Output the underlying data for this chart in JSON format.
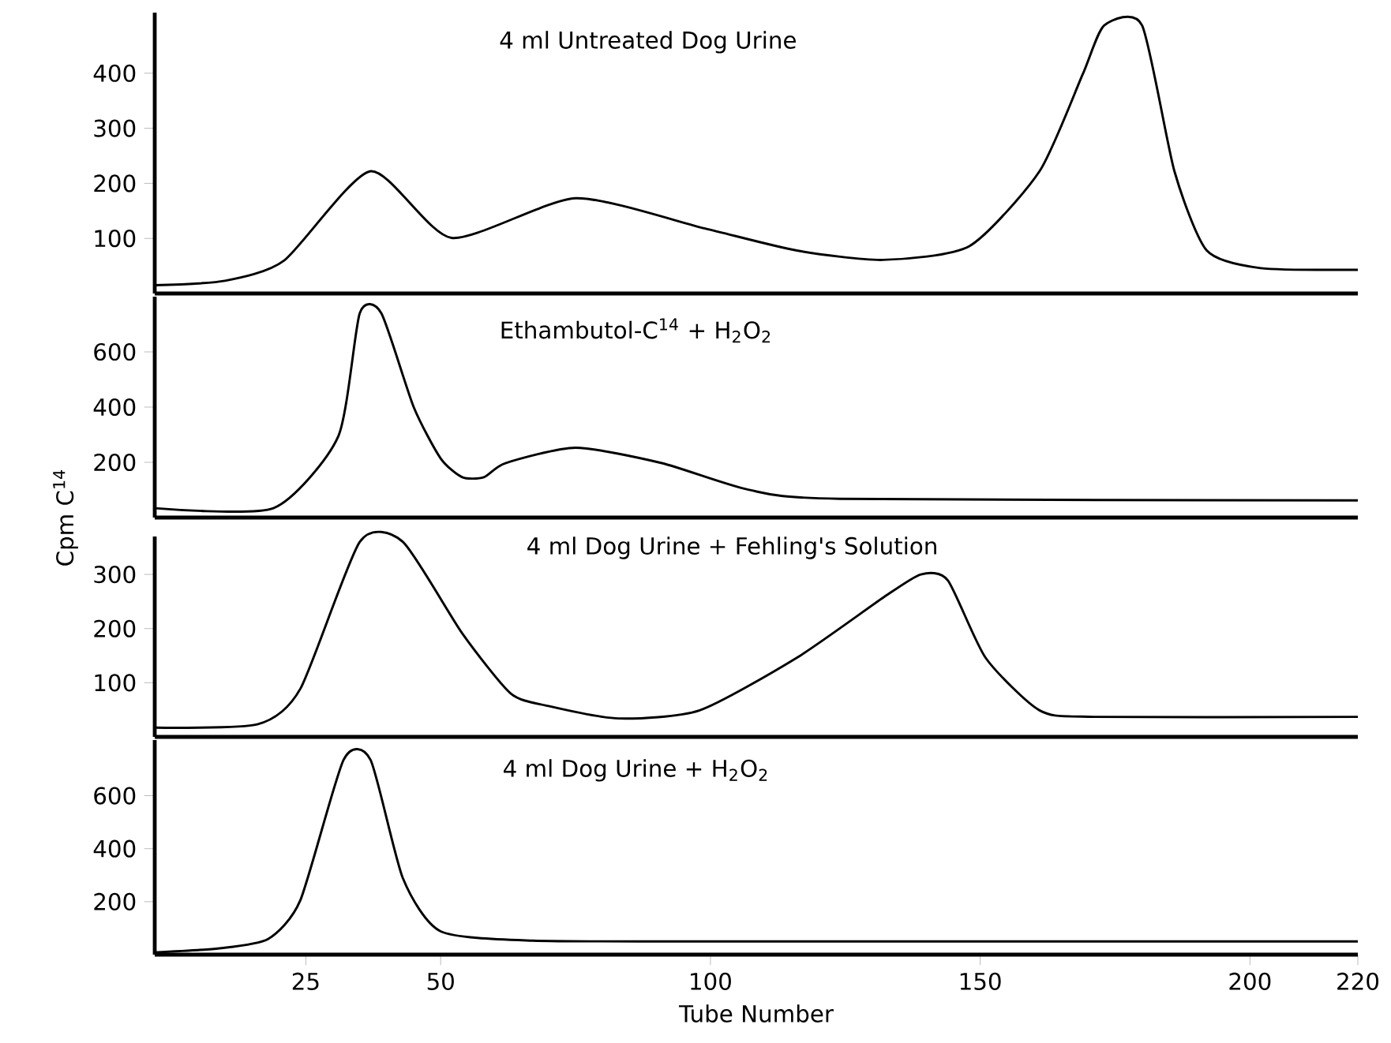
{
  "chart_data": [
    {
      "type": "line",
      "title": "4 ml Untreated Dog Urine",
      "x": [
        -3,
        10,
        21,
        37,
        52,
        75,
        99,
        116,
        132,
        148,
        161,
        169,
        173,
        180,
        186,
        192,
        202,
        220
      ],
      "values": [
        15,
        23,
        60,
        222,
        101,
        173,
        118,
        78,
        61,
        86,
        222,
        398,
        487,
        487,
        222,
        78,
        46,
        43
      ],
      "xlim": [
        -3,
        220
      ],
      "ylim": [
        0,
        510
      ],
      "yticks": [
        100,
        200,
        300,
        400
      ],
      "tick_labels": "y"
    },
    {
      "type": "line",
      "title": "Ethambutol-C$^{14}$ + H$_{2}$O$_{2}$",
      "ylabel": "Cpm C$^{14}$",
      "x": [
        -3,
        19,
        31,
        35,
        39,
        45,
        50,
        54,
        58,
        62,
        75,
        91,
        107,
        124,
        220
      ],
      "values": [
        34,
        34,
        293,
        740,
        740,
        400,
        214,
        146,
        146,
        197,
        253,
        197,
        101,
        68,
        62
      ],
      "xlim": [
        -3,
        220
      ],
      "ylim": [
        0,
        800
      ],
      "yticks": [
        200,
        400,
        600
      ],
      "tick_labels": "y"
    },
    {
      "type": "line",
      "title": "4 ml Dog Urine + Fehling's Solution",
      "x": [
        -3,
        16,
        24,
        35,
        43,
        54,
        63,
        70,
        83,
        98,
        116,
        132,
        139,
        144,
        151,
        161,
        171,
        220
      ],
      "values": [
        17,
        23,
        89,
        360,
        360,
        191,
        80,
        57,
        34,
        49,
        146,
        257,
        300,
        289,
        146,
        49,
        37,
        37
      ],
      "xlim": [
        -3,
        220
      ],
      "ylim": [
        0,
        370
      ],
      "yticks": [
        100,
        200,
        300
      ],
      "tick_labels": "y"
    },
    {
      "type": "line",
      "title": "4 ml Dog Urine + H$_{2}$O$_{2}$",
      "xlabel": "Tube Number",
      "x": [
        -3,
        9,
        18,
        24,
        32,
        37,
        43,
        50,
        67,
        100,
        220
      ],
      "values": [
        8,
        24,
        59,
        206,
        735,
        735,
        288,
        88,
        53,
        50,
        50
      ],
      "xlim": [
        -3,
        220
      ],
      "ylim": [
        0,
        810
      ],
      "yticks": [
        200,
        400,
        600
      ],
      "xticks": [
        25,
        50,
        100,
        150,
        200,
        220
      ]
    }
  ]
}
